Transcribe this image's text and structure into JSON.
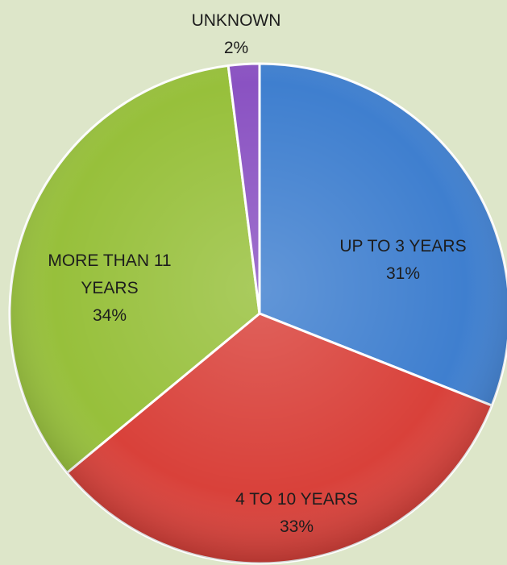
{
  "chart_data": {
    "type": "pie",
    "categories": [
      "UP TO 3 YEARS",
      "4 TO 10 YEARS",
      "MORE THAN 11 YEARS",
      "UNKNOWN"
    ],
    "values": [
      31,
      33,
      34,
      2
    ],
    "display_labels": [
      [
        "UP TO 3 YEARS",
        "31%"
      ],
      [
        "4 TO 10 YEARS",
        "33%"
      ],
      [
        "MORE THAN 11",
        "YEARS",
        "34%"
      ],
      [
        "UNKNOWN",
        "2%"
      ]
    ],
    "colors": [
      "#3f7fcf",
      "#d9413a",
      "#97c03b",
      "#8a52c2"
    ],
    "title": "",
    "start_angle_deg": 0,
    "direction": "clockwise"
  }
}
